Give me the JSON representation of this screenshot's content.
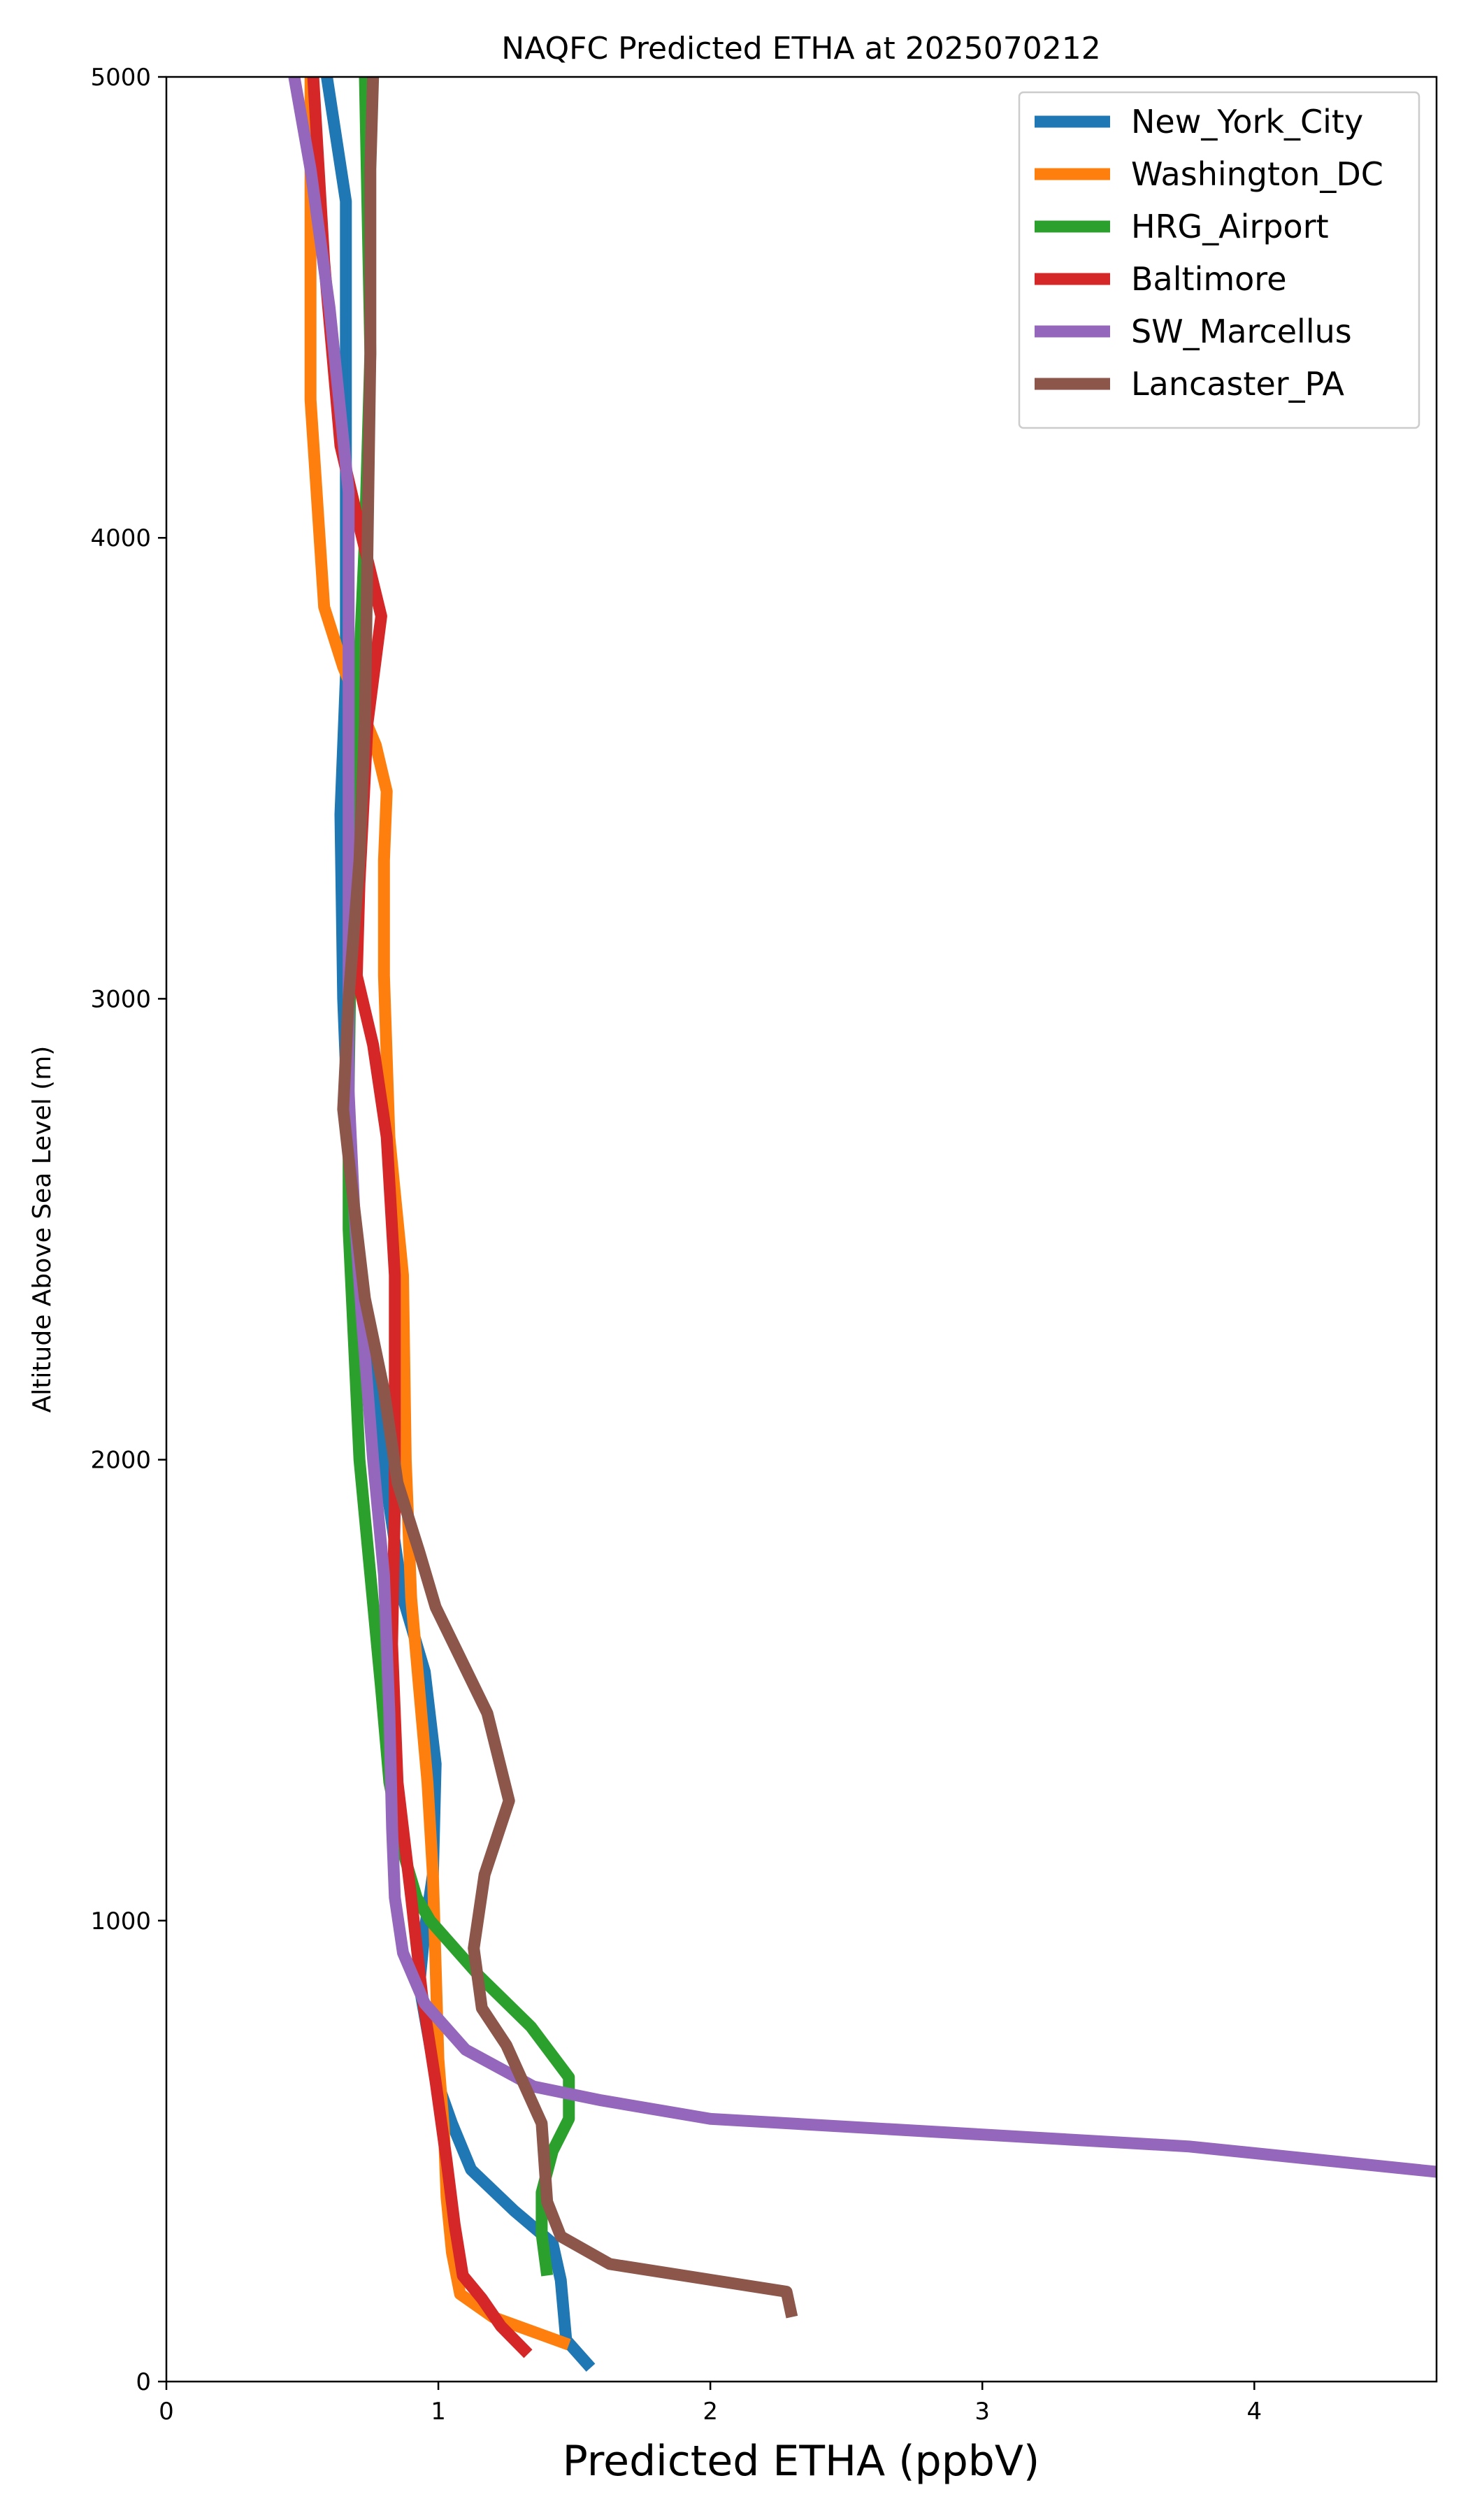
{
  "chart_data": {
    "type": "line",
    "title": "NAQFC Predicted ETHA at 2025070212",
    "xlabel": "Predicted ETHA (ppbV)",
    "ylabel": "Altitude Above Sea Level (m)",
    "xlim": [
      0,
      4.67
    ],
    "ylim": [
      0,
      5000
    ],
    "x_ticks": [
      0,
      1,
      2,
      3,
      4
    ],
    "y_ticks": [
      0,
      1000,
      2000,
      3000,
      4000,
      5000
    ],
    "grid": false,
    "legend_position": "top-right",
    "series": [
      {
        "name": "New_York_City",
        "color": "#1f77b4",
        "points": [
          [
            1.56,
            30
          ],
          [
            1.47,
            90
          ],
          [
            1.45,
            220
          ],
          [
            1.42,
            300
          ],
          [
            1.28,
            370
          ],
          [
            1.12,
            460
          ],
          [
            1.05,
            560
          ],
          [
            0.99,
            660
          ],
          [
            0.96,
            760
          ],
          [
            0.93,
            860
          ],
          [
            0.95,
            980
          ],
          [
            0.98,
            1100
          ],
          [
            0.99,
            1340
          ],
          [
            0.95,
            1540
          ],
          [
            0.87,
            1700
          ],
          [
            0.82,
            1900
          ],
          [
            0.77,
            2100
          ],
          [
            0.7,
            2400
          ],
          [
            0.67,
            2700
          ],
          [
            0.65,
            3000
          ],
          [
            0.64,
            3400
          ],
          [
            0.66,
            3700
          ],
          [
            0.66,
            4100
          ],
          [
            0.66,
            4450
          ],
          [
            0.66,
            4730
          ],
          [
            0.59,
            5000
          ]
        ]
      },
      {
        "name": "Washington_DC",
        "color": "#ff7f0e",
        "points": [
          [
            1.48,
            80
          ],
          [
            1.2,
            140
          ],
          [
            1.08,
            190
          ],
          [
            1.05,
            280
          ],
          [
            1.03,
            400
          ],
          [
            1.02,
            550
          ],
          [
            1.0,
            700
          ],
          [
            0.99,
            900
          ],
          [
            0.98,
            1100
          ],
          [
            0.96,
            1300
          ],
          [
            0.93,
            1500
          ],
          [
            0.9,
            1700
          ],
          [
            0.88,
            2000
          ],
          [
            0.87,
            2400
          ],
          [
            0.82,
            2700
          ],
          [
            0.8,
            3050
          ],
          [
            0.8,
            3300
          ],
          [
            0.81,
            3450
          ],
          [
            0.77,
            3550
          ],
          [
            0.65,
            3720
          ],
          [
            0.58,
            3850
          ],
          [
            0.53,
            4300
          ],
          [
            0.53,
            4650
          ],
          [
            0.53,
            5000
          ]
        ]
      },
      {
        "name": "HRG_Airport",
        "color": "#2ca02c",
        "points": [
          [
            1.4,
            230
          ],
          [
            1.38,
            320
          ],
          [
            1.38,
            410
          ],
          [
            1.42,
            500
          ],
          [
            1.48,
            570
          ],
          [
            1.48,
            660
          ],
          [
            1.34,
            770
          ],
          [
            1.15,
            880
          ],
          [
            0.97,
            1000
          ],
          [
            0.92,
            1050
          ],
          [
            0.87,
            1150
          ],
          [
            0.82,
            1300
          ],
          [
            0.79,
            1500
          ],
          [
            0.75,
            1750
          ],
          [
            0.71,
            2000
          ],
          [
            0.69,
            2250
          ],
          [
            0.67,
            2500
          ],
          [
            0.67,
            2800
          ],
          [
            0.68,
            3200
          ],
          [
            0.7,
            3600
          ],
          [
            0.73,
            4000
          ],
          [
            0.75,
            4400
          ],
          [
            0.74,
            4700
          ],
          [
            0.73,
            5000
          ]
        ]
      },
      {
        "name": "Baltimore",
        "color": "#d62728",
        "points": [
          [
            1.33,
            60
          ],
          [
            1.23,
            120
          ],
          [
            1.16,
            180
          ],
          [
            1.09,
            230
          ],
          [
            1.06,
            340
          ],
          [
            1.03,
            480
          ],
          [
            0.99,
            650
          ],
          [
            0.94,
            840
          ],
          [
            0.9,
            1050
          ],
          [
            0.85,
            1300
          ],
          [
            0.83,
            1600
          ],
          [
            0.84,
            1900
          ],
          [
            0.84,
            2150
          ],
          [
            0.84,
            2400
          ],
          [
            0.81,
            2700
          ],
          [
            0.76,
            2900
          ],
          [
            0.7,
            3050
          ],
          [
            0.71,
            3250
          ],
          [
            0.74,
            3600
          ],
          [
            0.79,
            3830
          ],
          [
            0.72,
            4000
          ],
          [
            0.64,
            4200
          ],
          [
            0.58,
            4600
          ],
          [
            0.54,
            5000
          ]
        ]
      },
      {
        "name": "SW_Marcellus",
        "color": "#9467bd",
        "points": [
          [
            4.67,
            455
          ],
          [
            3.76,
            510
          ],
          [
            2.0,
            570
          ],
          [
            1.6,
            610
          ],
          [
            1.35,
            640
          ],
          [
            1.1,
            720
          ],
          [
            0.95,
            820
          ],
          [
            0.87,
            930
          ],
          [
            0.84,
            1050
          ],
          [
            0.83,
            1200
          ],
          [
            0.82,
            1450
          ],
          [
            0.8,
            1750
          ],
          [
            0.76,
            2000
          ],
          [
            0.72,
            2300
          ],
          [
            0.69,
            2550
          ],
          [
            0.67,
            2800
          ],
          [
            0.67,
            3100
          ],
          [
            0.67,
            3400
          ],
          [
            0.67,
            3700
          ],
          [
            0.67,
            4100
          ],
          [
            0.6,
            4500
          ],
          [
            0.53,
            4800
          ],
          [
            0.47,
            5000
          ]
        ]
      },
      {
        "name": "Lancaster_PA",
        "color": "#8c564b",
        "points": [
          [
            2.3,
            140
          ],
          [
            2.28,
            195
          ],
          [
            1.63,
            255
          ],
          [
            1.45,
            315
          ],
          [
            1.4,
            390
          ],
          [
            1.38,
            560
          ],
          [
            1.25,
            730
          ],
          [
            1.16,
            810
          ],
          [
            1.13,
            940
          ],
          [
            1.17,
            1100
          ],
          [
            1.26,
            1260
          ],
          [
            1.18,
            1450
          ],
          [
            0.99,
            1680
          ],
          [
            0.93,
            1800
          ],
          [
            0.85,
            1950
          ],
          [
            0.8,
            2150
          ],
          [
            0.73,
            2350
          ],
          [
            0.69,
            2550
          ],
          [
            0.65,
            2760
          ],
          [
            0.67,
            3000
          ],
          [
            0.71,
            3300
          ],
          [
            0.73,
            3600
          ],
          [
            0.74,
            4000
          ],
          [
            0.75,
            4400
          ],
          [
            0.75,
            4800
          ],
          [
            0.76,
            5000
          ]
        ]
      }
    ]
  }
}
